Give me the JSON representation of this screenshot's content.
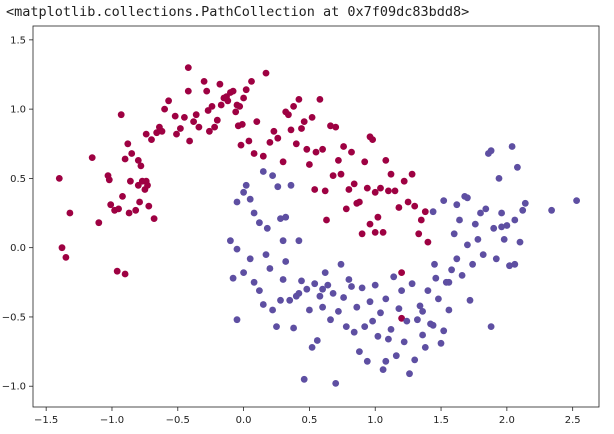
{
  "output_text": "<matplotlib.collections.PathCollection at 0x7f09dc83bdd8>",
  "chart_data": {
    "type": "scatter",
    "title": "",
    "xlabel": "",
    "ylabel": "",
    "xlim": [
      -1.6,
      2.7
    ],
    "ylim": [
      -1.15,
      1.6
    ],
    "grid": false,
    "x_ticks": [
      -1.5,
      -1.0,
      -0.5,
      0.0,
      0.5,
      1.0,
      1.5,
      2.0,
      2.5
    ],
    "x_tick_labels": [
      "−1.5",
      "−1.0",
      "−0.5",
      "0.0",
      "0.5",
      "1.0",
      "1.5",
      "2.0",
      "2.5"
    ],
    "y_ticks": [
      -1.0,
      -0.5,
      0.0,
      0.5,
      1.0,
      1.5
    ],
    "y_tick_labels": [
      "−1.0",
      "−0.5",
      "0.0",
      "0.5",
      "1.0",
      "1.5"
    ],
    "series": [
      {
        "color": "#9e0142",
        "points": [
          [
            -1.4,
            0.5
          ],
          [
            -1.32,
            0.25
          ],
          [
            -1.38,
            0.0
          ],
          [
            -1.35,
            -0.07
          ],
          [
            -1.15,
            0.65
          ],
          [
            -1.1,
            0.18
          ],
          [
            -1.03,
            0.52
          ],
          [
            -1.02,
            0.49
          ],
          [
            -1.01,
            0.31
          ],
          [
            -0.98,
            0.27
          ],
          [
            -0.95,
            0.28
          ],
          [
            -0.96,
            -0.17
          ],
          [
            -0.92,
            0.37
          ],
          [
            -0.93,
            0.96
          ],
          [
            -0.9,
            -0.19
          ],
          [
            -0.9,
            0.64
          ],
          [
            -0.88,
            0.75
          ],
          [
            -0.87,
            0.25
          ],
          [
            -0.85,
            0.68
          ],
          [
            -0.86,
            0.48
          ],
          [
            -0.82,
            0.27
          ],
          [
            -0.8,
            0.45
          ],
          [
            -0.8,
            0.63
          ],
          [
            -0.79,
            0.33
          ],
          [
            -0.78,
            0.59
          ],
          [
            -0.77,
            0.48
          ],
          [
            -0.75,
            0.42
          ],
          [
            -0.74,
            0.48
          ],
          [
            -0.73,
            0.45
          ],
          [
            -0.72,
            0.3
          ],
          [
            -0.74,
            0.82
          ],
          [
            -0.7,
            0.78
          ],
          [
            -0.68,
            0.21
          ],
          [
            -0.66,
            0.83
          ],
          [
            -0.64,
            0.87
          ],
          [
            -0.62,
            0.84
          ],
          [
            -0.6,
            1.0
          ],
          [
            -0.57,
            1.06
          ],
          [
            -0.52,
            0.95
          ],
          [
            -0.51,
            0.82
          ],
          [
            -0.48,
            0.86
          ],
          [
            -0.45,
            0.94
          ],
          [
            -0.42,
            1.13
          ],
          [
            -0.41,
            0.77
          ],
          [
            -0.42,
            1.3
          ],
          [
            -0.38,
            0.91
          ],
          [
            -0.36,
            0.96
          ],
          [
            -0.34,
            0.87
          ],
          [
            -0.3,
            1.2
          ],
          [
            -0.28,
            1.13
          ],
          [
            -0.27,
            0.99
          ],
          [
            -0.26,
            0.84
          ],
          [
            -0.24,
            1.02
          ],
          [
            -0.22,
            0.87
          ],
          [
            -0.2,
            0.92
          ],
          [
            -0.18,
            1.18
          ],
          [
            -0.17,
            1.03
          ],
          [
            -0.15,
            1.08
          ],
          [
            -0.13,
            1.09
          ],
          [
            -0.12,
            1.06
          ],
          [
            -0.1,
            1.12
          ],
          [
            -0.08,
            1.13
          ],
          [
            -0.06,
            0.98
          ],
          [
            -0.05,
            1.03
          ],
          [
            -0.04,
            0.88
          ],
          [
            -0.03,
            1.02
          ],
          [
            -0.02,
            0.74
          ],
          [
            -0.01,
            0.89
          ],
          [
            0.0,
            1.08
          ],
          [
            0.02,
            1.14
          ],
          [
            0.04,
            0.77
          ],
          [
            0.06,
            1.2
          ],
          [
            0.08,
            0.68
          ],
          [
            0.1,
            0.91
          ],
          [
            0.15,
            0.66
          ],
          [
            0.17,
            1.26
          ],
          [
            0.2,
            0.76
          ],
          [
            0.23,
            0.84
          ],
          [
            0.26,
            0.79
          ],
          [
            0.3,
            0.62
          ],
          [
            0.32,
            0.98
          ],
          [
            0.34,
            0.96
          ],
          [
            0.36,
            0.85
          ],
          [
            0.38,
            1.02
          ],
          [
            0.4,
            0.75
          ],
          [
            0.42,
            1.07
          ],
          [
            0.44,
            0.86
          ],
          [
            0.46,
            0.91
          ],
          [
            0.48,
            0.71
          ],
          [
            0.5,
            0.6
          ],
          [
            0.52,
            0.94
          ],
          [
            0.54,
            0.42
          ],
          [
            0.55,
            0.69
          ],
          [
            0.58,
            1.07
          ],
          [
            0.6,
            0.71
          ],
          [
            0.62,
            0.41
          ],
          [
            0.63,
            0.2
          ],
          [
            0.66,
            0.88
          ],
          [
            0.68,
            0.52
          ],
          [
            0.7,
            0.87
          ],
          [
            0.72,
            0.63
          ],
          [
            0.74,
            0.53
          ],
          [
            0.76,
            0.73
          ],
          [
            0.78,
            0.28
          ],
          [
            0.8,
            0.42
          ],
          [
            0.82,
            0.69
          ],
          [
            0.84,
            0.46
          ],
          [
            0.86,
            0.32
          ],
          [
            0.88,
            0.33
          ],
          [
            0.9,
            0.1
          ],
          [
            0.92,
            0.62
          ],
          [
            0.94,
            0.43
          ],
          [
            0.96,
            0.8
          ],
          [
            0.98,
            0.78
          ],
          [
            1.0,
            0.4
          ],
          [
            1.02,
            0.22
          ],
          [
            1.04,
            0.43
          ],
          [
            1.06,
            0.11
          ],
          [
            1.08,
            0.63
          ],
          [
            1.1,
            0.41
          ],
          [
            1.12,
            0.53
          ],
          [
            1.15,
            0.41
          ],
          [
            1.18,
            0.29
          ],
          [
            1.2,
            -0.18
          ],
          [
            1.22,
            0.48
          ],
          [
            1.25,
            0.33
          ],
          [
            1.28,
            0.53
          ],
          [
            1.3,
            0.3
          ],
          [
            1.33,
            0.1
          ],
          [
            1.35,
            0.2
          ],
          [
            1.38,
            0.26
          ],
          [
            1.4,
            0.04
          ],
          [
            1.2,
            -0.51
          ],
          [
            1.0,
            0.11
          ],
          [
            0.96,
            0.17
          ]
        ]
      },
      {
        "color": "#5e4fa2",
        "points": [
          [
            -0.05,
            0.33
          ],
          [
            0.0,
            0.4
          ],
          [
            0.02,
            0.45
          ],
          [
            0.05,
            0.35
          ],
          [
            0.08,
            0.25
          ],
          [
            0.12,
            0.18
          ],
          [
            0.15,
            0.55
          ],
          [
            0.18,
            0.14
          ],
          [
            0.22,
            0.52
          ],
          [
            0.26,
            0.44
          ],
          [
            0.28,
            0.21
          ],
          [
            0.3,
            0.05
          ],
          [
            0.32,
            0.22
          ],
          [
            -0.05,
            -0.01
          ],
          [
            -0.08,
            -0.22
          ],
          [
            -0.1,
            0.05
          ],
          [
            -0.05,
            -0.52
          ],
          [
            0.0,
            -0.18
          ],
          [
            0.05,
            -0.08
          ],
          [
            0.08,
            -0.25
          ],
          [
            0.12,
            -0.31
          ],
          [
            0.15,
            -0.41
          ],
          [
            0.17,
            -0.05
          ],
          [
            0.2,
            -0.15
          ],
          [
            0.22,
            -0.45
          ],
          [
            0.25,
            -0.57
          ],
          [
            0.28,
            -0.38
          ],
          [
            0.3,
            -0.23
          ],
          [
            0.32,
            -0.1
          ],
          [
            0.35,
            -0.38
          ],
          [
            0.38,
            -0.58
          ],
          [
            0.4,
            -0.35
          ],
          [
            0.42,
            -0.33
          ],
          [
            0.44,
            -0.24
          ],
          [
            0.46,
            -0.95
          ],
          [
            0.48,
            -0.3
          ],
          [
            0.5,
            -0.45
          ],
          [
            0.52,
            -0.72
          ],
          [
            0.54,
            -0.26
          ],
          [
            0.56,
            -0.67
          ],
          [
            0.58,
            -0.35
          ],
          [
            0.6,
            -0.43
          ],
          [
            0.62,
            -0.18
          ],
          [
            0.64,
            -0.27
          ],
          [
            0.66,
            -0.52
          ],
          [
            0.68,
            -0.33
          ],
          [
            0.7,
            -0.98
          ],
          [
            0.72,
            -0.46
          ],
          [
            0.74,
            -0.12
          ],
          [
            0.76,
            -0.36
          ],
          [
            0.78,
            -0.57
          ],
          [
            0.8,
            -0.23
          ],
          [
            0.82,
            -0.28
          ],
          [
            0.84,
            -0.61
          ],
          [
            0.86,
            -0.43
          ],
          [
            0.88,
            -0.75
          ],
          [
            0.9,
            -0.29
          ],
          [
            0.92,
            -0.57
          ],
          [
            0.94,
            -0.82
          ],
          [
            0.96,
            -0.39
          ],
          [
            0.98,
            -0.53
          ],
          [
            1.0,
            -0.27
          ],
          [
            1.02,
            -0.64
          ],
          [
            1.04,
            -0.47
          ],
          [
            1.06,
            -0.88
          ],
          [
            1.08,
            -0.37
          ],
          [
            1.1,
            -0.66
          ],
          [
            1.12,
            -0.59
          ],
          [
            1.14,
            -0.21
          ],
          [
            1.16,
            -0.78
          ],
          [
            1.18,
            -0.44
          ],
          [
            1.2,
            -0.31
          ],
          [
            1.22,
            -0.68
          ],
          [
            1.24,
            -0.53
          ],
          [
            1.26,
            -0.91
          ],
          [
            1.28,
            -0.26
          ],
          [
            1.3,
            -0.81
          ],
          [
            1.32,
            -0.52
          ],
          [
            1.34,
            -0.42
          ],
          [
            1.36,
            -0.63
          ],
          [
            1.38,
            -0.72
          ],
          [
            1.4,
            -0.31
          ],
          [
            1.42,
            -0.55
          ],
          [
            1.44,
            -0.56
          ],
          [
            1.46,
            -0.22
          ],
          [
            1.48,
            -0.37
          ],
          [
            1.5,
            -0.69
          ],
          [
            1.52,
            -0.6
          ],
          [
            1.54,
            -0.25
          ],
          [
            1.56,
            -0.45
          ],
          [
            1.58,
            -0.16
          ],
          [
            1.6,
            0.1
          ],
          [
            1.62,
            -0.08
          ],
          [
            1.64,
            0.2
          ],
          [
            1.66,
            -0.2
          ],
          [
            1.68,
            0.37
          ],
          [
            1.7,
            0.02
          ],
          [
            1.72,
            -0.38
          ],
          [
            1.74,
            -0.12
          ],
          [
            1.76,
            0.17
          ],
          [
            1.78,
            0.06
          ],
          [
            1.8,
            0.25
          ],
          [
            1.82,
            -0.05
          ],
          [
            1.84,
            0.28
          ],
          [
            1.86,
            0.68
          ],
          [
            1.88,
            -0.57
          ],
          [
            1.9,
            0.14
          ],
          [
            1.92,
            -0.08
          ],
          [
            1.94,
            0.5
          ],
          [
            1.96,
            0.25
          ],
          [
            1.98,
            0.06
          ],
          [
            2.0,
            0.16
          ],
          [
            2.02,
            -0.13
          ],
          [
            2.04,
            0.73
          ],
          [
            2.06,
            0.2
          ],
          [
            2.08,
            0.58
          ],
          [
            2.1,
            0.04
          ],
          [
            2.12,
            0.27
          ],
          [
            2.14,
            0.32
          ],
          [
            2.34,
            0.27
          ],
          [
            2.53,
            0.34
          ],
          [
            1.56,
            -0.25
          ],
          [
            1.62,
            0.31
          ],
          [
            1.52,
            0.34
          ],
          [
            1.45,
            -0.12
          ],
          [
            1.7,
            0.36
          ],
          [
            1.88,
            0.7
          ],
          [
            1.96,
            0.15
          ],
          [
            2.06,
            -0.12
          ],
          [
            1.44,
            0.26
          ],
          [
            1.36,
            -0.46
          ],
          [
            1.08,
            -0.82
          ],
          [
            0.42,
            0.05
          ],
          [
            0.36,
            0.45
          ],
          [
            0.6,
            -0.3
          ]
        ]
      }
    ]
  }
}
